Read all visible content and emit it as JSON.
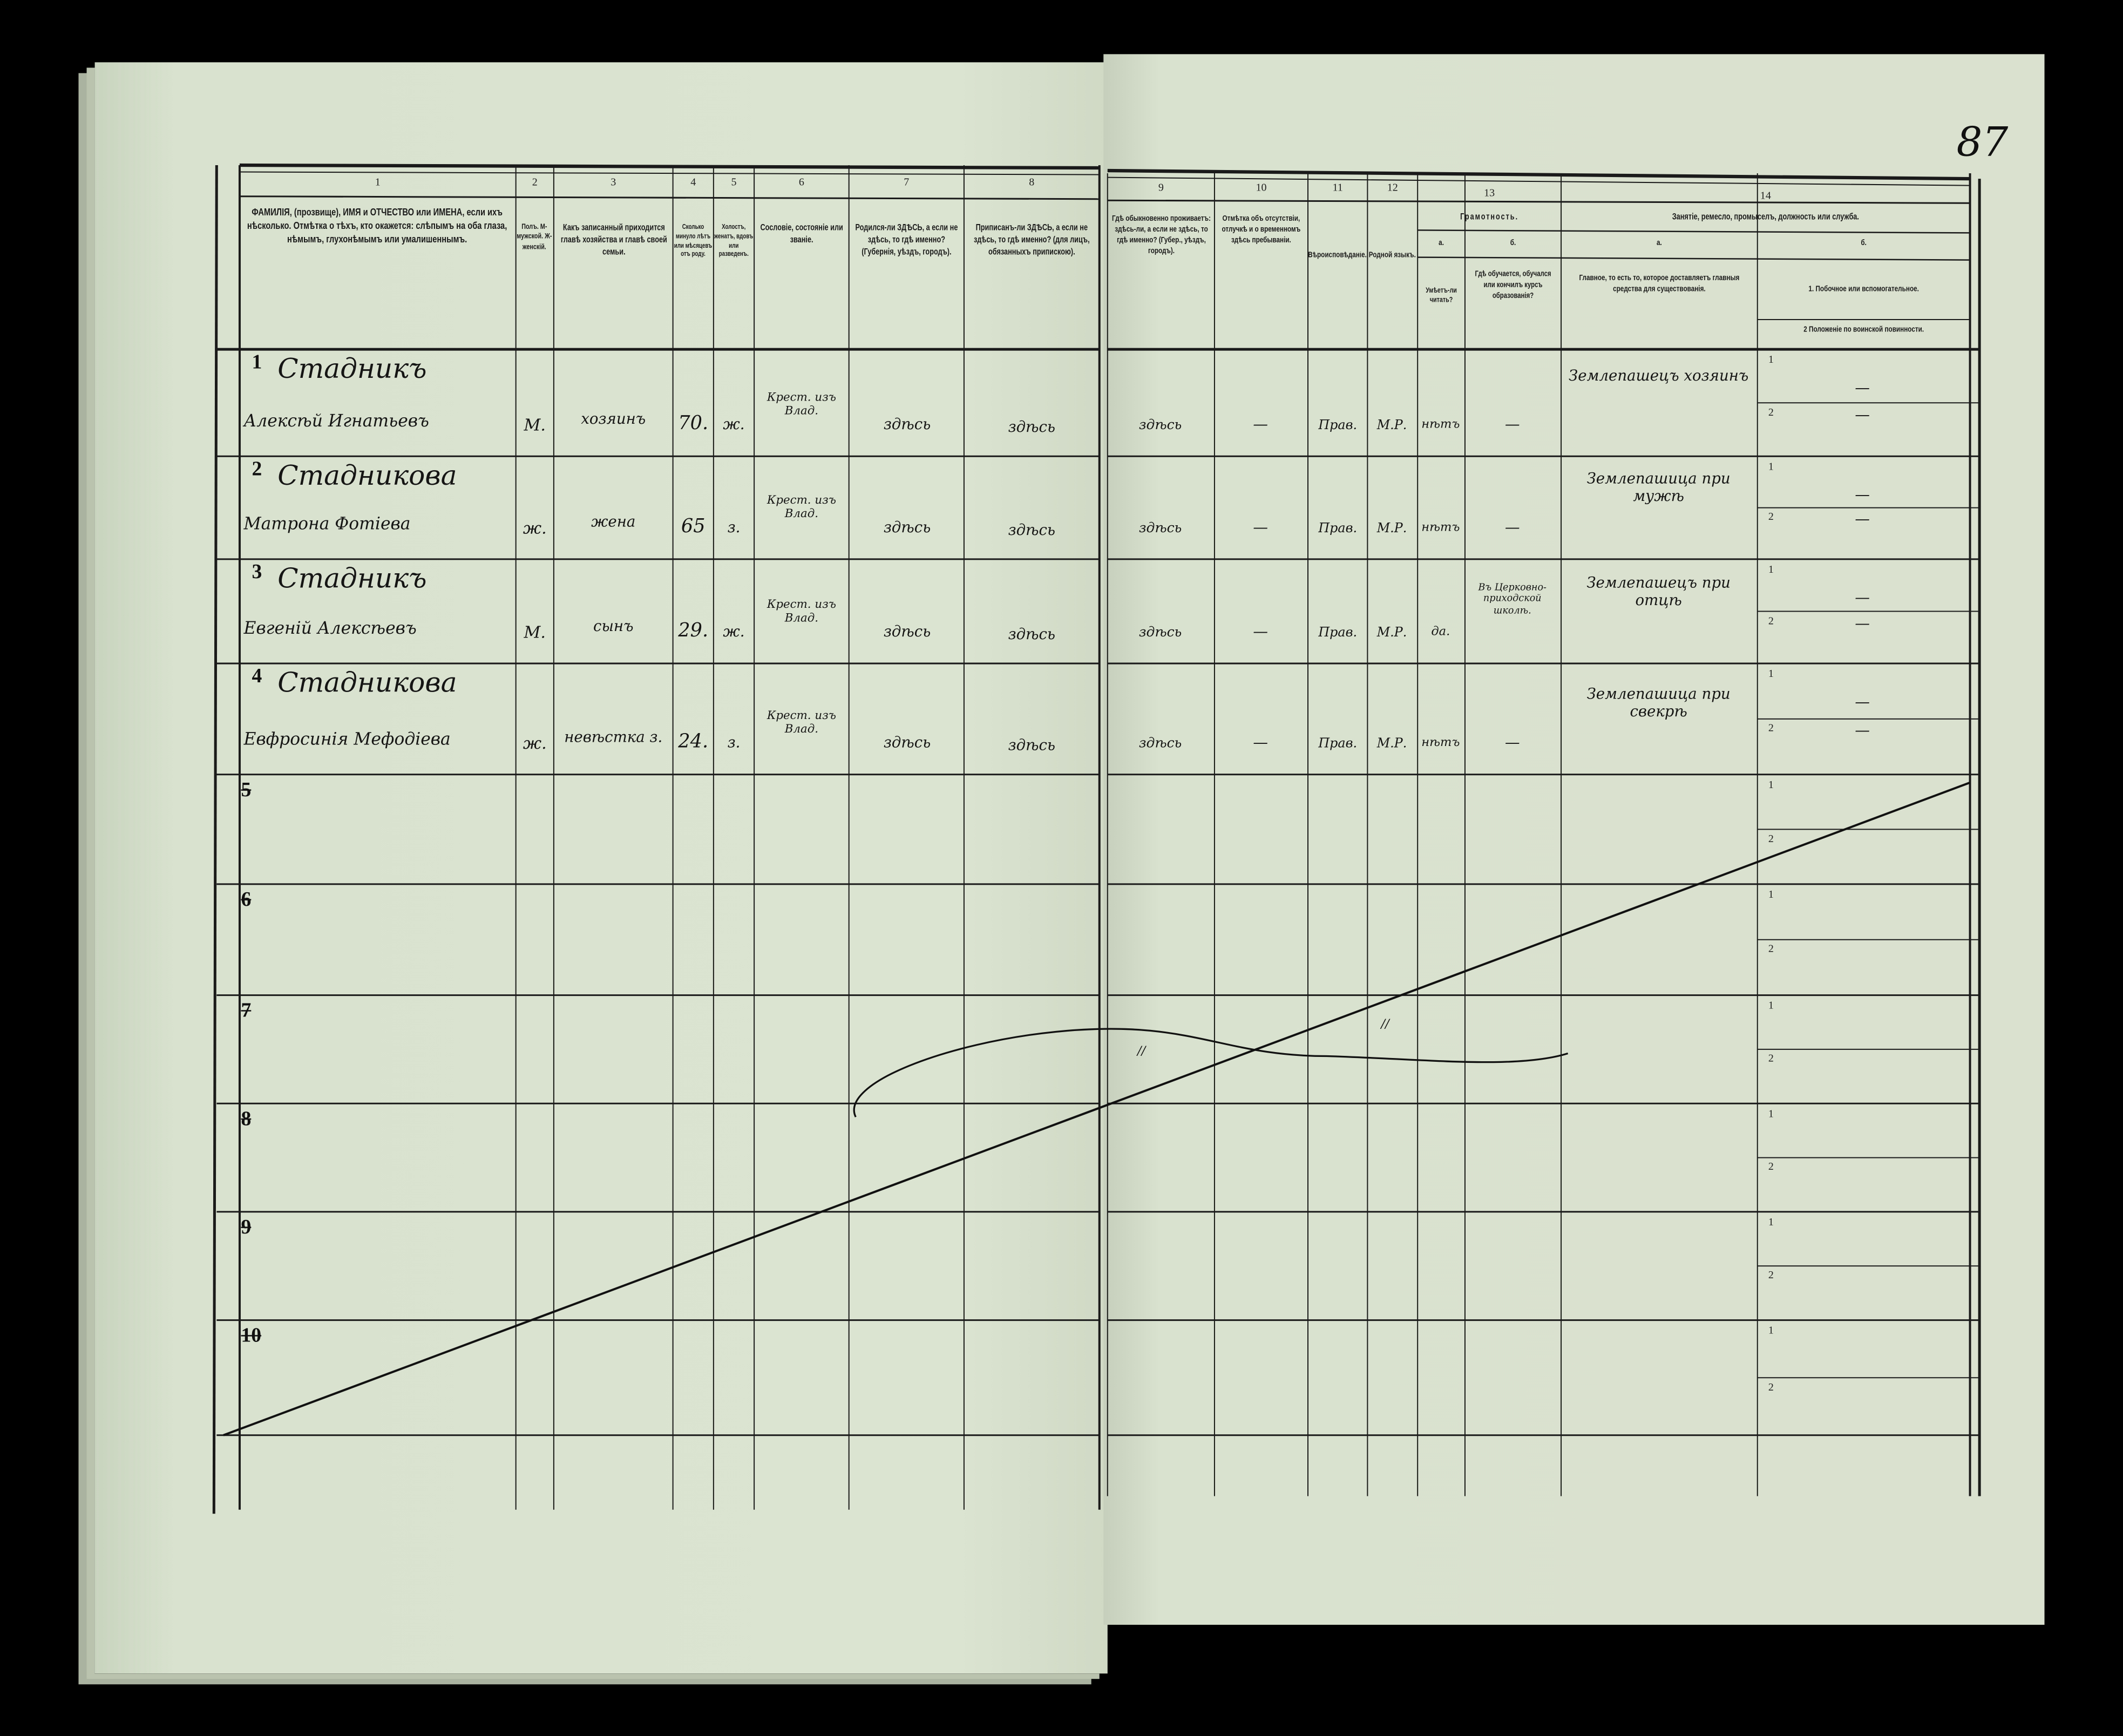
{
  "page_number": "87",
  "left_columns": [
    {
      "no": "1",
      "header": "ФАМИЛІЯ, (прозвище), ИМЯ и ОТЧЕСТВО или ИМЕНА, если ихъ нѣсколько. Отмѣтка о тѣхъ, кто окажется: слѣпымъ на оба глаза, нѣмымъ, глухонѣмымъ или умалишеннымъ."
    },
    {
      "no": "2",
      "header": "Полъ. М-мужской. Ж-женскій."
    },
    {
      "no": "3",
      "header": "Какъ записанный приходится главѣ хозяйства и главѣ своей семьи."
    },
    {
      "no": "4",
      "header": "Сколько минуло лѣтъ или мѣсяцевъ отъ роду."
    },
    {
      "no": "5",
      "header": "Холостъ, женатъ, вдовъ или разведенъ."
    },
    {
      "no": "6",
      "header": "Сословіе, состояніе или званіе."
    },
    {
      "no": "7",
      "header": "Родился-ли ЗДѢСЬ, а если не здѣсь, то гдѣ именно? (Губернія, уѣздъ, городъ)."
    },
    {
      "no": "8",
      "header": "Приписанъ-ли ЗДѢСЬ, а если не здѣсь, то гдѣ именно? (для лицъ, обязанныхъ припискою)."
    }
  ],
  "right_columns": [
    {
      "no": "9",
      "header": "Гдѣ обыкновенно проживаетъ: здѣсь-ли, а если не здѣсь, то гдѣ именно? (Губер., уѣздъ, городъ)."
    },
    {
      "no": "10",
      "header": "Отмѣтка объ отсутствіи, отлучкѣ и о временномъ здѣсь пребываніи."
    },
    {
      "no": "11",
      "header": "Вѣроисповѣданіе."
    },
    {
      "no": "12",
      "header": "Родной языкъ."
    }
  ],
  "literacy": {
    "no": "13",
    "title": "Грамотность.",
    "a_label": "а.",
    "a_header": "Умѣетъ-ли читать?",
    "b_label": "б.",
    "b_header": "Гдѣ обучается, обучался или кончилъ курсъ образованія?"
  },
  "occupation": {
    "no": "14",
    "title": "Занятіе, ремесло, промыселъ, должность или служба.",
    "a_label": "а.",
    "a_header": "Главное, то есть то, которое доставляетъ главныя средства для существованія.",
    "b_label": "б.",
    "b_header_1": "1. Побочное или вспомогательное.",
    "b_header_2": "2 Положеніе по воинской повинности."
  },
  "rows": [
    {
      "no": "1",
      "surname": "Стадникъ",
      "name": "Алексѣй Игнатьевъ",
      "sex": "М.",
      "relation": "хозяинъ",
      "age": "70.",
      "marital": "ж.",
      "estate": "Крест. изъ Влад.",
      "born": "здѣсь",
      "registered": "здѣсь",
      "residence": "здѣсь",
      "absence": "—",
      "religion": "Прав.",
      "language": "М.Р.",
      "reads": "нѣтъ",
      "school": "—",
      "occupation": "Землепашецъ хозяинъ",
      "side_1": "—",
      "side_2": "—"
    },
    {
      "no": "2",
      "surname": "Стадникова",
      "name": "Матрона Фотіева",
      "sex": "ж.",
      "relation": "жена",
      "age": "65",
      "marital": "з.",
      "estate": "Крест. изъ Влад.",
      "born": "здѣсь",
      "registered": "здѣсь",
      "residence": "здѣсь",
      "absence": "—",
      "religion": "Прав.",
      "language": "М.Р.",
      "reads": "нѣтъ",
      "school": "—",
      "occupation": "Землепашица при мужѣ",
      "side_1": "—",
      "side_2": "—"
    },
    {
      "no": "3",
      "surname": "Стадникъ",
      "name": "Евгеній Алексѣевъ",
      "sex": "М.",
      "relation": "сынъ",
      "age": "29.",
      "marital": "ж.",
      "estate": "Крест. изъ Влад.",
      "born": "здѣсь",
      "registered": "здѣсь",
      "residence": "здѣсь",
      "absence": "—",
      "religion": "Прав.",
      "language": "М.Р.",
      "reads": "да.",
      "school": "Въ Церковно-приходской школѣ.",
      "occupation": "Землепашецъ при отцѣ",
      "side_1": "—",
      "side_2": "—"
    },
    {
      "no": "4",
      "surname": "Стадникова",
      "name": "Евфросинія Мефодіева",
      "sex": "ж.",
      "relation": "невѣстка з.",
      "age": "24.",
      "marital": "з.",
      "estate": "Крест. изъ Влад.",
      "born": "здѣсь",
      "registered": "здѣсь",
      "residence": "здѣсь",
      "absence": "—",
      "religion": "Прав.",
      "language": "М.Р.",
      "reads": "нѣтъ",
      "school": "—",
      "occupation": "Землепашица при свекрѣ",
      "side_1": "—",
      "side_2": "—"
    }
  ],
  "empty_rows": [
    "5",
    "6",
    "7",
    "8",
    "9",
    "10"
  ],
  "sub_labels": [
    "1",
    "2"
  ],
  "stray_marks": [
    "//",
    "//"
  ],
  "colors": {
    "paper": "#d9e2cf",
    "ink": "#151515",
    "background": "#000000"
  }
}
